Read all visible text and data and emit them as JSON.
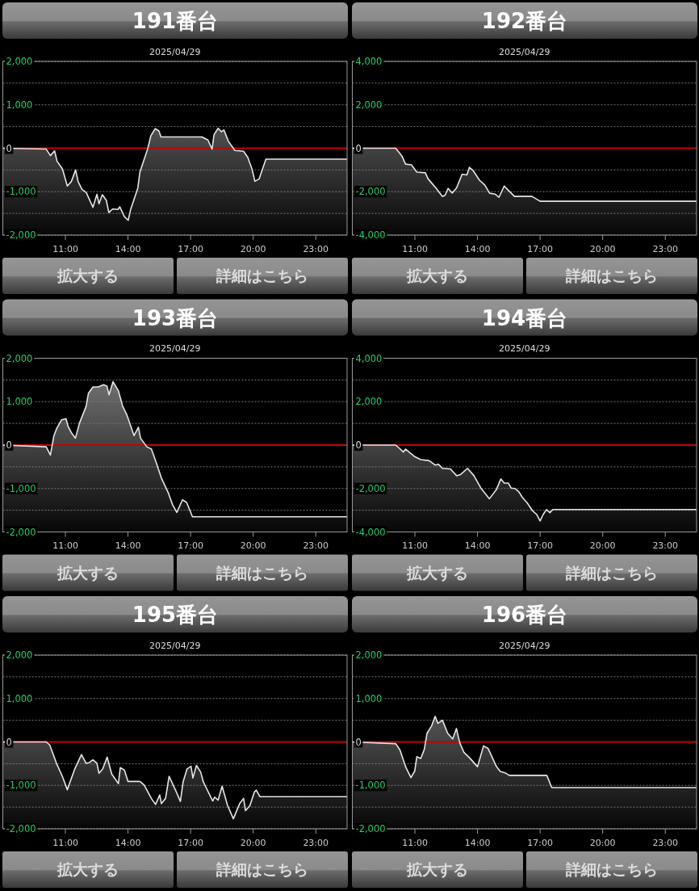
{
  "chart_data": [
    {
      "type": "line",
      "title": "191番台",
      "subtitle": "2025/04/29",
      "annotations": [
        "拡大する",
        "詳細はこちら"
      ],
      "xlim": [
        8,
        24.5
      ],
      "xticks": [
        {
          "value": 11,
          "label": "11:00"
        },
        {
          "value": 14,
          "label": "14:00"
        },
        {
          "value": 17,
          "label": "17:00"
        },
        {
          "value": 20,
          "label": "20:00"
        },
        {
          "value": 23,
          "label": "23:00"
        }
      ],
      "ylim": [
        -2000,
        2000
      ],
      "yticks": [
        {
          "value": 2000,
          "label": "2,000"
        },
        {
          "value": 1500,
          "label": null
        },
        {
          "value": 1000,
          "label": "1,000"
        },
        {
          "value": 500,
          "label": null
        },
        {
          "value": 0,
          "label": "0"
        },
        {
          "value": -500,
          "label": null
        },
        {
          "value": -1000,
          "label": "-1,000"
        },
        {
          "value": -1500,
          "label": null
        },
        {
          "value": -2000,
          "label": "-2,000"
        }
      ],
      "grid": "y",
      "ref_lines": [
        {
          "axis": "y",
          "value": 0,
          "color": "#cc0000"
        }
      ],
      "x": [
        8,
        10.08,
        10.28,
        10.48,
        10.6,
        10.86,
        11.09,
        11.28,
        11.49,
        11.61,
        11.8,
        12.0,
        12.32,
        12.51,
        12.61,
        12.77,
        12.96,
        13.08,
        13.26,
        13.52,
        13.61,
        13.83,
        14.01,
        14.12,
        14.47,
        14.57,
        14.94,
        15.09,
        15.3,
        15.48,
        15.58,
        17.54,
        17.83,
        18.03,
        18.12,
        18.32,
        18.47,
        18.6,
        18.81,
        19.12,
        19.54,
        19.74,
        19.95,
        20.08,
        20.28,
        20.61,
        24.5
      ],
      "series": [
        {
          "color": "#e6e6e6",
          "values": [
            0,
            -20,
            -170,
            -60,
            -300,
            -480,
            -870,
            -770,
            -500,
            -770,
            -950,
            -1020,
            -1360,
            -1060,
            -1280,
            -1070,
            -1200,
            -1480,
            -1400,
            -1410,
            -1350,
            -1580,
            -1660,
            -1420,
            -920,
            -550,
            -20,
            280,
            450,
            400,
            260,
            260,
            190,
            -20,
            310,
            460,
            380,
            420,
            160,
            -50,
            -70,
            -210,
            -490,
            -760,
            -710,
            -250,
            -250
          ],
          "upper": [
            0,
            -20,
            -170,
            -60,
            -300,
            -480,
            -870,
            -770,
            -500,
            -770,
            -950,
            -1020,
            -1360,
            -1060,
            -1280,
            -1070,
            -1200,
            -1480,
            -1400,
            -1410,
            -1350,
            -1580,
            -1660,
            -1420,
            -920,
            -550,
            -20,
            280,
            450,
            400,
            260,
            260,
            190,
            -20,
            310,
            460,
            380,
            420,
            160,
            -50,
            -70,
            -210,
            -490,
            -760,
            -710,
            -250,
            -250
          ],
          "lower": [
            -2000,
            -2000,
            -2000,
            -2000,
            -2000,
            -2000,
            -2000,
            -2000,
            -2000,
            -2000,
            -2000,
            -2000,
            -2000,
            -2000,
            -2000,
            -2000,
            -2000,
            -2000,
            -2000,
            -2000,
            -2000,
            -2000,
            -2000,
            -2000,
            -2000,
            -2000,
            -2000,
            -2000,
            -2000,
            -2000,
            -2000,
            -2000,
            -2000,
            -2000,
            -2000,
            -2000,
            -2000,
            -2000,
            -2000,
            -2000,
            -2000,
            -2000,
            -2000,
            -2000,
            -2000,
            -2000,
            -2000
          ]
        }
      ]
    },
    {
      "type": "line",
      "title": "192番台",
      "subtitle": "2025/04/29",
      "annotations": [
        "拡大する",
        "詳細はこちら"
      ],
      "xlim": [
        8,
        24.5
      ],
      "xticks": [
        {
          "value": 11,
          "label": "11:00"
        },
        {
          "value": 14,
          "label": "14:00"
        },
        {
          "value": 17,
          "label": "17:00"
        },
        {
          "value": 20,
          "label": "20:00"
        },
        {
          "value": 23,
          "label": "23:00"
        }
      ],
      "ylim": [
        -4000,
        4000
      ],
      "yticks": [
        {
          "value": 4000,
          "label": "4,000"
        },
        {
          "value": 3000,
          "label": null
        },
        {
          "value": 2000,
          "label": "2,000"
        },
        {
          "value": 1000,
          "label": null
        },
        {
          "value": 0,
          "label": "0"
        },
        {
          "value": -1000,
          "label": null
        },
        {
          "value": -2000,
          "label": "-2,000"
        },
        {
          "value": -3000,
          "label": null
        },
        {
          "value": -4000,
          "label": "-4,000"
        }
      ],
      "grid": "y",
      "ref_lines": [
        {
          "axis": "y",
          "value": 0,
          "color": "#cc0000"
        }
      ],
      "x": [
        8,
        10.08,
        10.38,
        10.55,
        10.83,
        11.09,
        11.5,
        11.63,
        11.97,
        12.32,
        12.45,
        12.59,
        12.79,
        13.0,
        13.26,
        13.49,
        13.61,
        13.8,
        14.1,
        14.35,
        14.58,
        14.83,
        15.03,
        15.28,
        15.48,
        15.77,
        16.61,
        17.0,
        24.5
      ],
      "series": [
        {
          "color": "#e6e6e6",
          "values": [
            0,
            0,
            -360,
            -730,
            -760,
            -1100,
            -1130,
            -1410,
            -1790,
            -2220,
            -2160,
            -1850,
            -2060,
            -1820,
            -1200,
            -1230,
            -880,
            -1040,
            -1480,
            -1700,
            -2070,
            -2110,
            -2260,
            -1740,
            -1940,
            -2220,
            -2220,
            -2440,
            -2440
          ],
          "upper": [
            0,
            0,
            -360,
            -730,
            -760,
            -1100,
            -1130,
            -1410,
            -1790,
            -2220,
            -2160,
            -1850,
            -2060,
            -1820,
            -1200,
            -1230,
            -880,
            -1040,
            -1480,
            -1700,
            -2070,
            -2110,
            -2260,
            -1740,
            -1940,
            -2220,
            -2220,
            -2440,
            -2440
          ],
          "lower": [
            -4000,
            -4000,
            -4000,
            -4000,
            -4000,
            -4000,
            -4000,
            -4000,
            -4000,
            -4000,
            -4000,
            -4000,
            -4000,
            -4000,
            -4000,
            -4000,
            -4000,
            -4000,
            -4000,
            -4000,
            -4000,
            -4000,
            -4000,
            -4000,
            -4000,
            -4000,
            -4000,
            -4000,
            -4000
          ]
        }
      ]
    },
    {
      "type": "line",
      "title": "193番台",
      "subtitle": "2025/04/29",
      "annotations": [
        "拡大する",
        "詳細はこちら"
      ],
      "xlim": [
        8,
        24.5
      ],
      "xticks": [
        {
          "value": 11,
          "label": "11:00"
        },
        {
          "value": 14,
          "label": "14:00"
        },
        {
          "value": 17,
          "label": "17:00"
        },
        {
          "value": 20,
          "label": "20:00"
        },
        {
          "value": 23,
          "label": "23:00"
        }
      ],
      "ylim": [
        -2000,
        2000
      ],
      "yticks": [
        {
          "value": 2000,
          "label": "2,000"
        },
        {
          "value": 1500,
          "label": null
        },
        {
          "value": 1000,
          "label": "1,000"
        },
        {
          "value": 500,
          "label": null
        },
        {
          "value": 0,
          "label": "0"
        },
        {
          "value": -500,
          "label": null
        },
        {
          "value": -1000,
          "label": "-1,000"
        },
        {
          "value": -1500,
          "label": null
        },
        {
          "value": -2000,
          "label": "-2,000"
        }
      ],
      "grid": "y",
      "ref_lines": [
        {
          "axis": "y",
          "value": 0,
          "color": "#cc0000"
        }
      ],
      "x": [
        8,
        10.08,
        10.28,
        10.45,
        10.58,
        10.81,
        11.03,
        11.12,
        11.28,
        11.48,
        11.67,
        11.99,
        12.1,
        12.32,
        12.57,
        12.83,
        12.99,
        13.09,
        13.28,
        13.54,
        13.74,
        13.95,
        14.29,
        14.5,
        14.6,
        14.9,
        15.12,
        15.35,
        15.61,
        15.94,
        16.13,
        16.34,
        16.61,
        16.81,
        17.09,
        24.5
      ],
      "series": [
        {
          "color": "#e6e6e6",
          "values": [
            0,
            -40,
            -230,
            220,
            380,
            580,
            610,
            440,
            290,
            160,
            500,
            890,
            1190,
            1340,
            1340,
            1390,
            1360,
            1160,
            1460,
            1250,
            900,
            690,
            220,
            410,
            160,
            -40,
            -90,
            -400,
            -770,
            -1110,
            -1370,
            -1550,
            -1260,
            -1320,
            -1650,
            -1650
          ],
          "upper": [
            0,
            -40,
            -230,
            220,
            380,
            580,
            610,
            440,
            290,
            160,
            500,
            890,
            1190,
            1340,
            1340,
            1390,
            1360,
            1160,
            1460,
            1250,
            900,
            690,
            220,
            410,
            160,
            -40,
            -90,
            -400,
            -770,
            -1110,
            -1370,
            -1550,
            -1260,
            -1320,
            -1650,
            -1650
          ],
          "lower": [
            -2000,
            -2000,
            -2000,
            -2000,
            -2000,
            -2000,
            -2000,
            -2000,
            -2000,
            -2000,
            -2000,
            -2000,
            -2000,
            -2000,
            -2000,
            -2000,
            -2000,
            -2000,
            -2000,
            -2000,
            -2000,
            -2000,
            -2000,
            -2000,
            -2000,
            -2000,
            -2000,
            -2000,
            -2000,
            -2000,
            -2000,
            -2000,
            -2000,
            -2000,
            -2000,
            -2000
          ]
        }
      ]
    },
    {
      "type": "line",
      "title": "194番台",
      "subtitle": "2025/04/29",
      "annotations": [
        "拡大する",
        "詳細はこちら"
      ],
      "xlim": [
        8,
        24.5
      ],
      "xticks": [
        {
          "value": 11,
          "label": "11:00"
        },
        {
          "value": 14,
          "label": "14:00"
        },
        {
          "value": 17,
          "label": "17:00"
        },
        {
          "value": 20,
          "label": "20:00"
        },
        {
          "value": 23,
          "label": "23:00"
        }
      ],
      "ylim": [
        -4000,
        4000
      ],
      "yticks": [
        {
          "value": 4000,
          "label": "4,000"
        },
        {
          "value": 3000,
          "label": null
        },
        {
          "value": 2000,
          "label": "2,000"
        },
        {
          "value": 1000,
          "label": null
        },
        {
          "value": 0,
          "label": "0"
        },
        {
          "value": -1000,
          "label": null
        },
        {
          "value": -2000,
          "label": "-2,000"
        },
        {
          "value": -3000,
          "label": null
        },
        {
          "value": -4000,
          "label": "-4,000"
        }
      ],
      "grid": "y",
      "ref_lines": [
        {
          "axis": "y",
          "value": 0,
          "color": "#cc0000"
        }
      ],
      "x": [
        8,
        10.08,
        10.25,
        10.45,
        10.55,
        10.97,
        11.28,
        11.67,
        11.97,
        12.12,
        12.32,
        12.7,
        13.0,
        13.18,
        13.52,
        13.83,
        14.16,
        14.57,
        14.9,
        15.12,
        15.28,
        15.48,
        15.61,
        15.8,
        15.99,
        16.15,
        16.38,
        16.64,
        16.83,
        17.0,
        17.15,
        17.31,
        17.47,
        17.61,
        24.5
      ],
      "series": [
        {
          "color": "#e6e6e6",
          "values": [
            0,
            0,
            -140,
            -320,
            -180,
            -520,
            -670,
            -710,
            -920,
            -880,
            -1070,
            -1100,
            -1410,
            -1360,
            -1070,
            -1410,
            -1980,
            -2470,
            -2060,
            -1560,
            -1750,
            -1750,
            -1980,
            -2000,
            -2160,
            -2410,
            -2660,
            -3030,
            -3190,
            -3490,
            -3190,
            -2970,
            -3110,
            -2970,
            -2970
          ],
          "upper": [
            0,
            0,
            -140,
            -320,
            -180,
            -520,
            -670,
            -710,
            -920,
            -880,
            -1070,
            -1100,
            -1410,
            -1360,
            -1070,
            -1410,
            -1980,
            -2470,
            -2060,
            -1560,
            -1750,
            -1750,
            -1980,
            -2000,
            -2160,
            -2410,
            -2660,
            -3030,
            -3190,
            -3490,
            -3190,
            -2970,
            -3110,
            -2970,
            -2970
          ],
          "lower": [
            -4000,
            -4000,
            -4000,
            -4000,
            -4000,
            -4000,
            -4000,
            -4000,
            -4000,
            -4000,
            -4000,
            -4000,
            -4000,
            -4000,
            -4000,
            -4000,
            -4000,
            -4000,
            -4000,
            -4000,
            -4000,
            -4000,
            -4000,
            -4000,
            -4000,
            -4000,
            -4000,
            -4000,
            -4000,
            -4000,
            -4000,
            -4000,
            -4000,
            -4000,
            -4000
          ]
        }
      ]
    },
    {
      "type": "line",
      "title": "195番台",
      "subtitle": "2025/04/29",
      "annotations": [
        "拡大する",
        "詳細はこちら"
      ],
      "xlim": [
        8,
        24.5
      ],
      "xticks": [
        {
          "value": 11,
          "label": "11:00"
        },
        {
          "value": 14,
          "label": "14:00"
        },
        {
          "value": 17,
          "label": "17:00"
        },
        {
          "value": 20,
          "label": "20:00"
        },
        {
          "value": 23,
          "label": "23:00"
        }
      ],
      "ylim": [
        -2000,
        2000
      ],
      "yticks": [
        {
          "value": 2000,
          "label": "2,000"
        },
        {
          "value": 1500,
          "label": null
        },
        {
          "value": 1000,
          "label": "1,000"
        },
        {
          "value": 500,
          "label": null
        },
        {
          "value": 0,
          "label": "0"
        },
        {
          "value": -500,
          "label": null
        },
        {
          "value": -1000,
          "label": "-1,000"
        },
        {
          "value": -1500,
          "label": null
        },
        {
          "value": -2000,
          "label": "-2,000"
        }
      ],
      "grid": "y",
      "ref_lines": [
        {
          "axis": "y",
          "value": 0,
          "color": "#cc0000"
        }
      ],
      "x": [
        8,
        10.08,
        10.25,
        10.57,
        10.86,
        11.09,
        11.45,
        11.77,
        11.99,
        12.12,
        12.32,
        12.51,
        12.61,
        12.79,
        13.0,
        13.22,
        13.54,
        13.63,
        13.83,
        14.0,
        14.57,
        14.77,
        15.13,
        15.32,
        15.52,
        15.6,
        15.8,
        15.97,
        16.25,
        16.51,
        16.64,
        16.83,
        17.02,
        17.11,
        17.28,
        17.48,
        17.61,
        18.06,
        18.15,
        18.32,
        18.51,
        18.77,
        19.05,
        19.35,
        19.54,
        19.63,
        19.84,
        20.06,
        20.15,
        20.32,
        24.5
      ],
      "series": [
        {
          "color": "#e6e6e6",
          "values": [
            0,
            0,
            -70,
            -490,
            -800,
            -1100,
            -620,
            -290,
            -490,
            -480,
            -410,
            -490,
            -720,
            -620,
            -350,
            -740,
            -960,
            -590,
            -650,
            -910,
            -910,
            -990,
            -1310,
            -1440,
            -1220,
            -1420,
            -1300,
            -790,
            -1080,
            -1370,
            -920,
            -620,
            -560,
            -830,
            -540,
            -690,
            -920,
            -1360,
            -1270,
            -1340,
            -1020,
            -1460,
            -1770,
            -1420,
            -1300,
            -1580,
            -1470,
            -1150,
            -1110,
            -1260,
            -1260
          ],
          "upper": [
            0,
            0,
            -70,
            -490,
            -800,
            -1100,
            -620,
            -290,
            -490,
            -480,
            -410,
            -490,
            -720,
            -620,
            -350,
            -740,
            -960,
            -590,
            -650,
            -910,
            -910,
            -990,
            -1310,
            -1440,
            -1220,
            -1420,
            -1300,
            -790,
            -1080,
            -1370,
            -920,
            -620,
            -560,
            -830,
            -540,
            -690,
            -920,
            -1360,
            -1270,
            -1340,
            -1020,
            -1460,
            -1770,
            -1420,
            -1300,
            -1580,
            -1470,
            -1150,
            -1110,
            -1260,
            -1260
          ],
          "lower": [
            -2000,
            -2000,
            -2000,
            -2000,
            -2000,
            -2000,
            -2000,
            -2000,
            -2000,
            -2000,
            -2000,
            -2000,
            -2000,
            -2000,
            -2000,
            -2000,
            -2000,
            -2000,
            -2000,
            -2000,
            -2000,
            -2000,
            -2000,
            -2000,
            -2000,
            -2000,
            -2000,
            -2000,
            -2000,
            -2000,
            -2000,
            -2000,
            -2000,
            -2000,
            -2000,
            -2000,
            -2000,
            -2000,
            -2000,
            -2000,
            -2000,
            -2000,
            -2000,
            -2000,
            -2000,
            -2000,
            -2000,
            -2000,
            -2000,
            -2000,
            -2000
          ]
        }
      ]
    },
    {
      "type": "line",
      "title": "196番台",
      "subtitle": "2025/04/29",
      "annotations": [
        "拡大する",
        "詳細はこちら"
      ],
      "xlim": [
        8,
        24.5
      ],
      "xticks": [
        {
          "value": 11,
          "label": "11:00"
        },
        {
          "value": 14,
          "label": "14:00"
        },
        {
          "value": 17,
          "label": "17:00"
        },
        {
          "value": 20,
          "label": "20:00"
        },
        {
          "value": 23,
          "label": "23:00"
        }
      ],
      "ylim": [
        -2000,
        2000
      ],
      "yticks": [
        {
          "value": 2000,
          "label": "2,000"
        },
        {
          "value": 1500,
          "label": null
        },
        {
          "value": 1000,
          "label": "1,000"
        },
        {
          "value": 500,
          "label": null
        },
        {
          "value": 0,
          "label": "0"
        },
        {
          "value": -500,
          "label": null
        },
        {
          "value": -1000,
          "label": "-1,000"
        },
        {
          "value": -1500,
          "label": null
        },
        {
          "value": -2000,
          "label": "-2,000"
        }
      ],
      "grid": "y",
      "ref_lines": [
        {
          "axis": "y",
          "value": 0,
          "color": "#cc0000"
        }
      ],
      "x": [
        8,
        10.08,
        10.28,
        10.57,
        10.81,
        10.99,
        11.09,
        11.28,
        11.45,
        11.58,
        11.8,
        11.97,
        12.1,
        12.32,
        12.57,
        12.81,
        12.99,
        13.15,
        13.35,
        13.61,
        14.0,
        14.29,
        14.51,
        14.9,
        15.09,
        15.32,
        15.52,
        17.32,
        17.56,
        24.5
      ],
      "series": [
        {
          "color": "#e6e6e6",
          "values": [
            0,
            -40,
            -180,
            -590,
            -820,
            -670,
            -340,
            -380,
            -170,
            200,
            370,
            590,
            430,
            500,
            200,
            70,
            310,
            -20,
            -240,
            -360,
            -570,
            -90,
            -150,
            -560,
            -680,
            -710,
            -770,
            -770,
            -1050,
            -1050
          ],
          "upper": [
            0,
            -40,
            -180,
            -590,
            -820,
            -670,
            -340,
            -380,
            -170,
            200,
            370,
            590,
            430,
            500,
            200,
            70,
            310,
            -20,
            -240,
            -360,
            -570,
            -90,
            -150,
            -560,
            -680,
            -710,
            -770,
            -770,
            -1050,
            -1050
          ],
          "lower": [
            -2000,
            -2000,
            -2000,
            -2000,
            -2000,
            -2000,
            -2000,
            -2000,
            -2000,
            -2000,
            -2000,
            -2000,
            -2000,
            -2000,
            -2000,
            -2000,
            -2000,
            -2000,
            -2000,
            -2000,
            -2000,
            -2000,
            -2000,
            -2000,
            -2000,
            -2000,
            -2000,
            -2000,
            -2000,
            -2000
          ]
        }
      ]
    }
  ]
}
